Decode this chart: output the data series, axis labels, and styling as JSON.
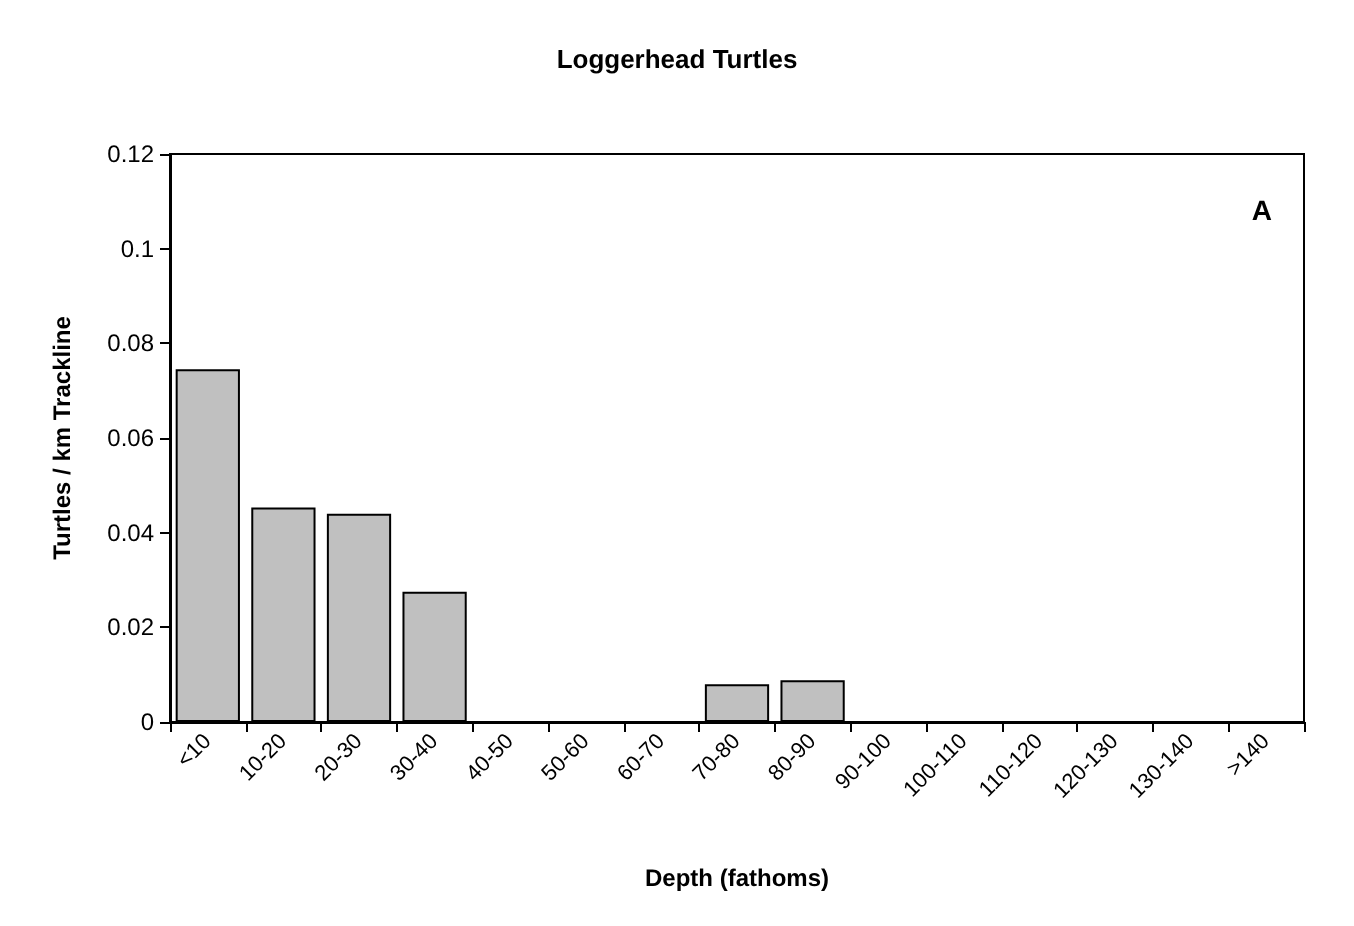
{
  "chart_data": {
    "type": "bar",
    "title": "Loggerhead Turtles",
    "xlabel": "Depth (fathoms)",
    "ylabel": "Turtles / km Trackline",
    "annotations": [
      "A"
    ],
    "categories": [
      "<10",
      "10-20",
      "20-30",
      "30-40",
      "40-50",
      "50-60",
      "60-70",
      "70-80",
      "80-90",
      "90-100",
      "100-110",
      "110-120",
      "120-130",
      "130-140",
      ">140"
    ],
    "values": [
      0.0745,
      0.0453,
      0.044,
      0.0275,
      0,
      0,
      0,
      0.008,
      0.0088,
      0,
      0,
      0,
      0,
      0,
      0
    ],
    "color": "#c0c0c0",
    "ylim": [
      0,
      0.12
    ],
    "yticks": [
      0,
      0.02,
      0.04,
      0.06,
      0.08,
      0.1,
      0.12
    ],
    "grid": false
  }
}
